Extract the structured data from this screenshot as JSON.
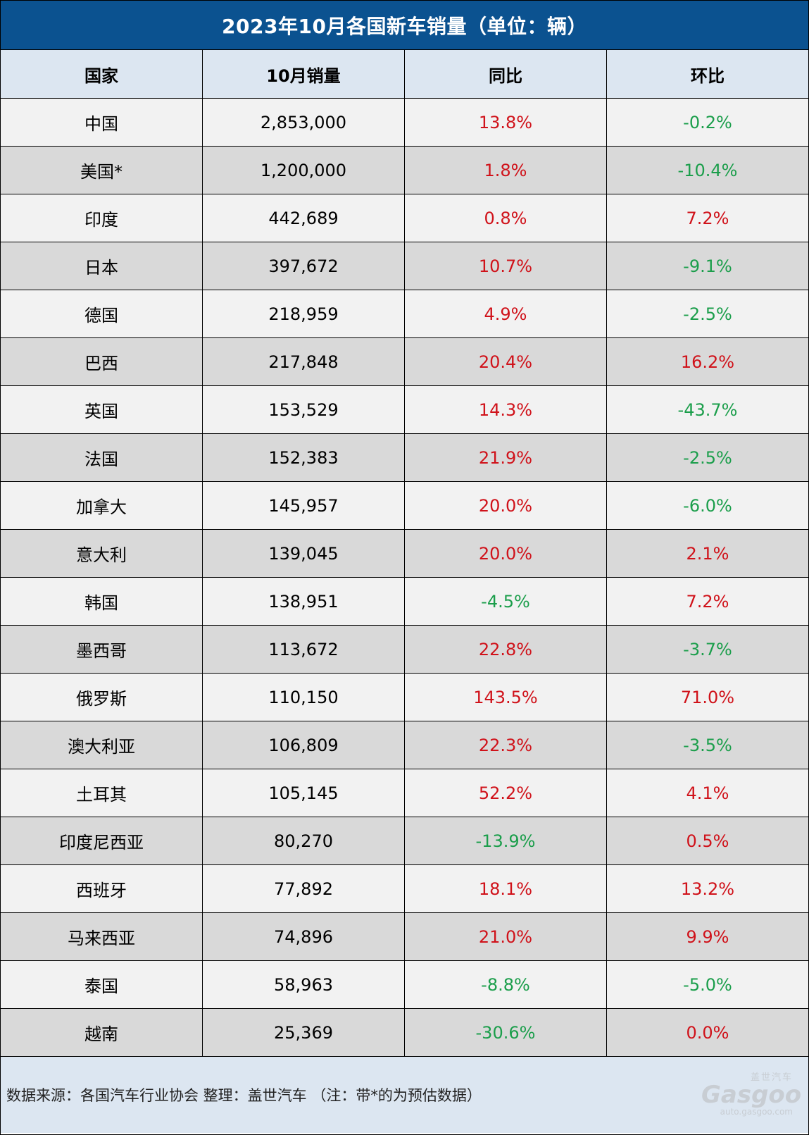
{
  "title": "2023年10月各国新车销量（单位：辆）",
  "headers": [
    "国家",
    "10月销量",
    "同比",
    "环比"
  ],
  "colors": {
    "header_bg": "#0b5290",
    "subheader_bg": "#dce6f1",
    "positive": "#d0121a",
    "negative": "#1b9e4b",
    "row_light": "#f2f2f2",
    "row_dark": "#d9d9d9"
  },
  "rows": [
    {
      "country": "中国",
      "sales": "2,853,000",
      "yoy": "13.8%",
      "mom": "-0.2%"
    },
    {
      "country": "美国*",
      "sales": "1,200,000",
      "yoy": "1.8%",
      "mom": "-10.4%"
    },
    {
      "country": "印度",
      "sales": "442,689",
      "yoy": "0.8%",
      "mom": "7.2%"
    },
    {
      "country": "日本",
      "sales": "397,672",
      "yoy": "10.7%",
      "mom": "-9.1%"
    },
    {
      "country": "德国",
      "sales": "218,959",
      "yoy": "4.9%",
      "mom": "-2.5%"
    },
    {
      "country": "巴西",
      "sales": "217,848",
      "yoy": "20.4%",
      "mom": "16.2%"
    },
    {
      "country": "英国",
      "sales": "153,529",
      "yoy": "14.3%",
      "mom": "-43.7%"
    },
    {
      "country": "法国",
      "sales": "152,383",
      "yoy": "21.9%",
      "mom": "-2.5%"
    },
    {
      "country": "加拿大",
      "sales": "145,957",
      "yoy": "20.0%",
      "mom": "-6.0%"
    },
    {
      "country": "意大利",
      "sales": "139,045",
      "yoy": "20.0%",
      "mom": "2.1%"
    },
    {
      "country": "韩国",
      "sales": "138,951",
      "yoy": "-4.5%",
      "mom": "7.2%"
    },
    {
      "country": "墨西哥",
      "sales": "113,672",
      "yoy": "22.8%",
      "mom": "-3.7%"
    },
    {
      "country": "俄罗斯",
      "sales": "110,150",
      "yoy": "143.5%",
      "mom": "71.0%"
    },
    {
      "country": "澳大利亚",
      "sales": "106,809",
      "yoy": "22.3%",
      "mom": "-3.5%"
    },
    {
      "country": "土耳其",
      "sales": "105,145",
      "yoy": "52.2%",
      "mom": "4.1%"
    },
    {
      "country": "印度尼西亚",
      "sales": "80,270",
      "yoy": "-13.9%",
      "mom": "0.5%"
    },
    {
      "country": "西班牙",
      "sales": "77,892",
      "yoy": "18.1%",
      "mom": "13.2%"
    },
    {
      "country": "马来西亚",
      "sales": "74,896",
      "yoy": "21.0%",
      "mom": "9.9%"
    },
    {
      "country": "泰国",
      "sales": "58,963",
      "yoy": "-8.8%",
      "mom": "-5.0%"
    },
    {
      "country": "越南",
      "sales": "25,369",
      "yoy": "-30.6%",
      "mom": "0.0%"
    }
  ],
  "footer": {
    "note": "数据来源：各国汽车行业协会 整理：盖世汽车 （注：带*的为预估数据）",
    "logo_cn": "盖世汽车",
    "logo_brand": "Gasgoo",
    "logo_url": "auto.gasgoo.com"
  }
}
